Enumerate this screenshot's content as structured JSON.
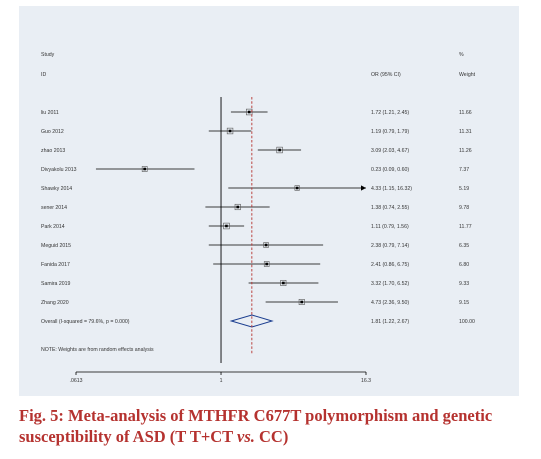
{
  "chart_data": {
    "type": "forest",
    "headers": {
      "study": [
        "Study",
        "ID"
      ],
      "effect": "OR (95% CI)",
      "weight": [
        "%",
        "Weight"
      ]
    },
    "x_scale": "log",
    "xlim": [
      0.0613,
      16.3
    ],
    "x_ticks": [
      ".0613",
      "1",
      "16.3"
    ],
    "null_line": 1,
    "pooled_line": 1.81,
    "studies": [
      {
        "id": "liu 2011",
        "or": 1.72,
        "lo": 1.21,
        "hi": 2.45,
        "ci_text": "1.72 (1.21, 2.45)",
        "weight": "11.66"
      },
      {
        "id": "Guo 2012",
        "or": 1.19,
        "lo": 0.79,
        "hi": 1.79,
        "ci_text": "1.19 (0.79, 1.79)",
        "weight": "11.31"
      },
      {
        "id": "zhao 2013",
        "or": 3.09,
        "lo": 2.03,
        "hi": 4.67,
        "ci_text": "3.09 (2.03, 4.67)",
        "weight": "11.26"
      },
      {
        "id": "Divyakolu 2013",
        "or": 0.23,
        "lo": 0.09,
        "hi": 0.6,
        "ci_text": "0.23 (0.09, 0.60)",
        "weight": "7.37"
      },
      {
        "id": "Shawky 2014",
        "or": 4.33,
        "lo": 1.15,
        "hi": 16.32,
        "ci_text": "4.33 (1.15, 16.32)",
        "weight": "5.19",
        "arrow": true
      },
      {
        "id": "sener 2014",
        "or": 1.38,
        "lo": 0.74,
        "hi": 2.55,
        "ci_text": "1.38 (0.74, 2.55)",
        "weight": "9.78"
      },
      {
        "id": "Park 2014",
        "or": 1.11,
        "or_display": 1.11,
        "lo": 0.79,
        "hi": 1.56,
        "ci_text": "1.11 (0.79, 1.56)",
        "weight": "11.77"
      },
      {
        "id": "Meguid 2015",
        "or": 2.38,
        "lo": 0.79,
        "hi": 7.14,
        "ci_text": "2.38 (0.79, 7.14)",
        "weight": "6.35"
      },
      {
        "id": "Fanida 2017",
        "or": 2.41,
        "lo": 0.86,
        "hi": 6.75,
        "ci_text": "2.41 (0.86, 6.75)",
        "weight": "6.80"
      },
      {
        "id": "Samira 2019",
        "or": 3.32,
        "lo": 1.7,
        "hi": 6.52,
        "ci_text": "3.32 (1.70, 6.52)",
        "weight": "9.33"
      },
      {
        "id": "Zhang 2020",
        "or": 4.73,
        "lo": 2.36,
        "hi": 9.5,
        "ci_text": "4.73 (2.36, 9.50)",
        "weight": "9.15"
      }
    ],
    "overall": {
      "label": "Overall  (I-squared = 79.6%, p = 0.000)",
      "or": 1.81,
      "lo": 1.22,
      "hi": 2.67,
      "ci_text": "1.81 (1.22, 2.67)",
      "weight": "100.00"
    },
    "note": "NOTE: Weights are from random effects analysis",
    "colors": {
      "panel_bg": "#e9eef4",
      "text": "#333333",
      "marker": "#555555",
      "pooled_line": "#b5322f",
      "diamond": "#1a3d8f",
      "caption": "#b5322f"
    }
  },
  "caption": {
    "fig_label": "Fig. 5:",
    "text_1": " Meta-analysis of MTHFR C677T polymorphism and genetic susceptibility of ASD (T T+CT ",
    "vs": "vs.",
    "text_2": " CC)"
  }
}
